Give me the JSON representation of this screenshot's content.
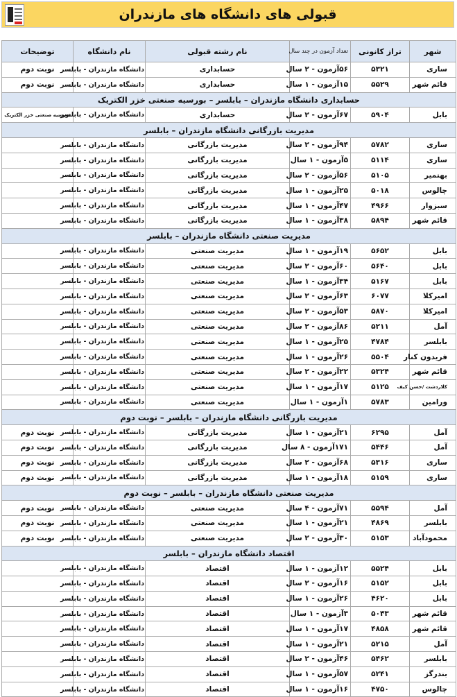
{
  "title": "قبولی های دانشگاه های مازندران",
  "colors": {
    "title_bg": "#fbd661",
    "header_bg": "#dbe5f3"
  },
  "headers": [
    "شهر",
    "تراز کانونی",
    "تعداد آزمون در چند سال",
    "نام رشته قبولی",
    "نام دانشگاه",
    "توضیحات"
  ],
  "sections": [
    {
      "title": "",
      "rows": [
        [
          "ساری",
          "۵۳۲۱",
          "۵۶آزمون - ۲ سال",
          "حسابداری",
          "دانشگاه مازندران - بابلسر",
          "نوبت دوم"
        ],
        [
          "قائم شهر",
          "۵۵۲۹",
          "۱۵آزمون - ۱ سال",
          "حسابداری",
          "دانشگاه مازندران - بابلسر",
          "نوبت دوم"
        ]
      ]
    },
    {
      "title": "حسابداری دانشگاه مازندران – بابلسر – بورسیه صنعتی خزر الکتریک",
      "rows": [
        [
          "بابل",
          "۵۹۰۴",
          "۶۷آزمون - ۲ سال",
          "حسابداری",
          "دانشگاه مازندران - بابلسر",
          "بورسیه صنعتی خزر الکتریک"
        ]
      ]
    },
    {
      "title": "مدیریت بازرگانی دانشگاه مازندران – بابلسر",
      "rows": [
        [
          "ساری",
          "۵۷۸۲",
          "۹۴آزمون - ۲ سال",
          "مدیریت بازرگانی",
          "دانشگاه مازندران - بابلسر",
          ""
        ],
        [
          "ساری",
          "۵۱۱۴",
          "۵آزمون - ۱ سال",
          "مدیریت بازرگانی",
          "دانشگاه مازندران - بابلسر",
          ""
        ],
        [
          "بهنمیر",
          "۵۱۰۵",
          "۵۶آزمون - ۲ سال",
          "مدیریت بازرگانی",
          "دانشگاه مازندران - بابلسر",
          ""
        ],
        [
          "چالوس",
          "۵۰۱۸",
          "۲۵آزمون - ۱ سال",
          "مدیریت بازرگانی",
          "دانشگاه مازندران - بابلسر",
          ""
        ],
        [
          "سبزوار",
          "۴۹۶۶",
          "۴۷آزمون - ۱ سال",
          "مدیریت بازرگانی",
          "دانشگاه مازندران - بابلسر",
          ""
        ],
        [
          "قائم شهر",
          "۵۸۹۴",
          "۳۸آزمون - ۱ سال",
          "مدیریت بازرگانی",
          "دانشگاه مازندران - بابلسر",
          ""
        ]
      ]
    },
    {
      "title": "مدیریت صنعتی دانشگاه مازندران – بابلسر",
      "rows": [
        [
          "بابل",
          "۵۶۵۲",
          "۱۹آزمون - ۱ سال",
          "مدیریت صنعتی",
          "دانشگاه مازندران - بابلسر",
          ""
        ],
        [
          "بابل",
          "۵۶۴۰",
          "۶۰آزمون - ۲ سال",
          "مدیریت صنعتی",
          "دانشگاه مازندران - بابلسر",
          ""
        ],
        [
          "بابل",
          "۵۱۶۷",
          "۳۴آزمون - ۱ سال",
          "مدیریت صنعتی",
          "دانشگاه مازندران - بابلسر",
          ""
        ],
        [
          "امیرکلا",
          "۶۰۷۷",
          "۶۳آزمون - ۲ سال",
          "مدیریت صنعتی",
          "دانشگاه مازندران - بابلسر",
          ""
        ],
        [
          "امیرکلا",
          "۵۸۷۰",
          "۵۳آزمون - ۲ سال",
          "مدیریت صنعتی",
          "دانشگاه مازندران - بابلسر",
          ""
        ],
        [
          "آمل",
          "۵۲۱۱",
          "۸۶آزمون - ۲ سال",
          "مدیریت صنعتی",
          "دانشگاه مازندران - بابلسر",
          ""
        ],
        [
          "بابلسر",
          "۴۷۸۴",
          "۲۵آزمون - ۱ سال",
          "مدیریت صنعتی",
          "دانشگاه مازندران - بابلسر",
          ""
        ],
        [
          "فریدون کنار",
          "۵۵۰۴",
          "۲۶آزمون - ۱ سال",
          "مدیریت صنعتی",
          "دانشگاه مازندران - بابلسر",
          ""
        ],
        [
          "قائم شهر",
          "۵۳۲۴",
          "۲۲آزمون - ۲ سال",
          "مدیریت صنعتی",
          "دانشگاه مازندران - بابلسر",
          ""
        ],
        [
          "کلاردشت /حسن کیف",
          "۵۱۲۵",
          "۱۷آزمون - ۱ سال",
          "مدیریت صنعتی",
          "دانشگاه مازندران - بابلسر",
          ""
        ],
        [
          "ورامین",
          "۵۷۸۳",
          "۱آزمون - ۱ سال",
          "مدیریت صنعتی",
          "دانشگاه مازندران - بابلسر",
          ""
        ]
      ]
    },
    {
      "title": "مدیریت بازرگانی دانشگاه مازندران – بابلسر – نوبت دوم",
      "rows": [
        [
          "آمل",
          "۶۲۹۵",
          "۲۱آزمون - ۱ سال",
          "مدیریت بازرگانی",
          "دانشگاه مازندران - بابلسر",
          "نوبت دوم"
        ],
        [
          "آمل",
          "۵۴۴۶",
          "۱۷۱آزمون - ۸ سال",
          "مدیریت بازرگانی",
          "دانشگاه مازندران - بابلسر",
          "نوبت دوم"
        ],
        [
          "ساری",
          "۵۳۱۶",
          "۶۸آزمون - ۲ سال",
          "مدیریت بازرگانی",
          "دانشگاه مازندران - بابلسر",
          "نوبت دوم"
        ],
        [
          "ساری",
          "۵۱۵۹",
          "۱۸آزمون - ۱ سال",
          "مدیریت بازرگانی",
          "دانشگاه مازندران - بابلسر",
          "نوبت دوم"
        ]
      ]
    },
    {
      "title": "مدیریت صنعتی دانشگاه مازندران – بابلسر – نوبت دوم",
      "rows": [
        [
          "آمل",
          "۵۵۹۴",
          "۷۱آزمون - ۴ سال",
          "مدیریت صنعتی",
          "دانشگاه مازندران - بابلسر",
          "نوبت دوم"
        ],
        [
          "بابلسر",
          "۴۸۶۹",
          "۲۱آزمون - ۱ سال",
          "مدیریت صنعتی",
          "دانشگاه مازندران - بابلسر",
          "نوبت دوم"
        ],
        [
          "محمودآباد",
          "۵۱۵۳",
          "۳۰آزمون - ۲ سال",
          "مدیریت صنعتی",
          "دانشگاه مازندران - بابلسر",
          "نوبت دوم"
        ]
      ]
    },
    {
      "title": "اقتصاد دانشگاه مازندران – بابلسر",
      "rows": [
        [
          "بابل",
          "۵۵۲۴",
          "۱۲آزمون - ۱ سال",
          "اقتصاد",
          "دانشگاه مازندران - بابلسر",
          ""
        ],
        [
          "بابل",
          "۵۱۵۲",
          "۱۶آزمون - ۲ سال",
          "اقتصاد",
          "دانشگاه مازندران - بابلسر",
          ""
        ],
        [
          "بابل",
          "۴۶۲۰",
          "۲۶آزمون - ۱ سال",
          "اقتصاد",
          "دانشگاه مازندران - بابلسر",
          ""
        ],
        [
          "قائم شهر",
          "۵۰۴۳",
          "۳آزمون - ۱ سال",
          "اقتصاد",
          "دانشگاه مازندران - بابلسر",
          ""
        ],
        [
          "قائم شهر",
          "۴۸۵۸",
          "۱۷آزمون - ۱ سال",
          "اقتصاد",
          "دانشگاه مازندران - بابلسر",
          ""
        ],
        [
          "آمل",
          "۵۲۱۵",
          "۲۱آزمون - ۱ سال",
          "اقتصاد",
          "دانشگاه مازندران - بابلسر",
          ""
        ],
        [
          "بابلسر",
          "۵۴۶۲",
          "۴۶آزمون - ۲ سال",
          "اقتصاد",
          "دانشگاه مازندران - بابلسر",
          ""
        ],
        [
          "بندرگز",
          "۵۲۴۱",
          "۵۷آزمون - ۱ سال",
          "اقتصاد",
          "دانشگاه مازندران - بابلسر",
          ""
        ],
        [
          "چالوس",
          "۴۷۵۰",
          "۱۶آزمون - ۱ سال",
          "اقتصاد",
          "دانشگاه مازندران - بابلسر",
          ""
        ]
      ]
    }
  ]
}
